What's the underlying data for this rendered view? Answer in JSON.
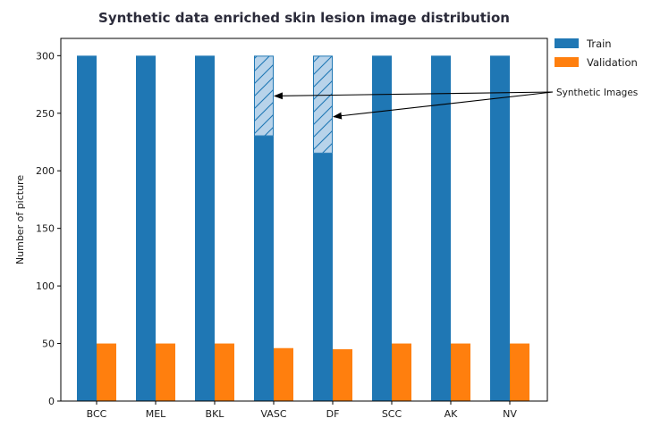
{
  "chart_data": {
    "type": "bar",
    "title": "Synthetic data enriched skin lesion image distribution",
    "xlabel": "",
    "ylabel": "Number of picture",
    "categories": [
      "BCC",
      "MEL",
      "BKL",
      "VASC",
      "DF",
      "SCC",
      "AK",
      "NV"
    ],
    "series": [
      {
        "name": "Train",
        "color": "#1f77b4",
        "values": [
          300,
          300,
          300,
          230,
          215,
          300,
          300,
          300
        ]
      },
      {
        "name": "Validation",
        "color": "#ff7f0e",
        "values": [
          50,
          50,
          50,
          46,
          45,
          50,
          50,
          50
        ]
      }
    ],
    "synthetic": {
      "label": "Synthetic Images",
      "color": "#1f77b4",
      "fill": "#b8d3ea",
      "segments": [
        {
          "category": "VASC",
          "from": 230,
          "to": 300
        },
        {
          "category": "DF",
          "from": 215,
          "to": 300
        }
      ],
      "arrow_targets": [
        {
          "category": "VASC",
          "y": 265
        },
        {
          "category": "DF",
          "y": 247
        }
      ]
    },
    "ylim": [
      0,
      315
    ],
    "yticks": [
      0,
      50,
      100,
      150,
      200,
      250,
      300
    ],
    "grid": false,
    "legend": "top-right, outside plot"
  }
}
